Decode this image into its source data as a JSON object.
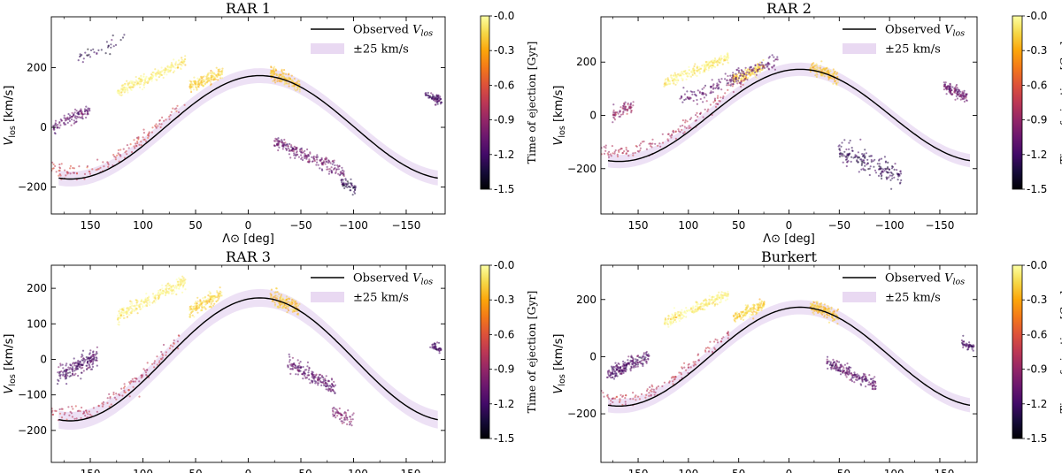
{
  "chart_data": [
    {
      "type": "scatter",
      "title": "RAR 1",
      "xlabel": "Λ⊙ [deg]",
      "ylabel": "V_los [km/s]",
      "xlim": [
        187,
        -187
      ],
      "ylim": [
        -290,
        370
      ],
      "x_ticks": [
        150,
        100,
        50,
        0,
        -50,
        -100,
        -150
      ],
      "x_tick_labels": [
        "150",
        "100",
        "50",
        "0",
        "−50",
        "−100",
        "−150"
      ],
      "y_ticks": [
        -200,
        0,
        200
      ],
      "y_tick_labels": [
        "−200",
        "0",
        "200"
      ],
      "legend": {
        "position": "top-right",
        "entries": [
          "Observed V_los",
          "±25 km/s"
        ]
      },
      "colorbar": {
        "label": "Time of ejection [Gyr]",
        "range": [
          -1.5,
          0.0
        ],
        "ticks": [
          "-0.0",
          "-0.3",
          "-0.6",
          "-0.9",
          "-1.2",
          "-1.5"
        ],
        "colormap": "inferno"
      },
      "observed_curve": {
        "model": "V = 170·cos(Λ) − 33·sin(Λ)",
        "amplitude": 173,
        "phase_deg": 11,
        "band_halfwidth": 25
      },
      "clumps": [
        {
          "center": [
            92,
            170
          ],
          "length": 185,
          "width": 18,
          "time": -0.05,
          "n": 250
        },
        {
          "center": [
            40,
            160
          ],
          "length": 90,
          "width": 20,
          "time": -0.15,
          "n": 160
        },
        {
          "center": [
            -35,
            160
          ],
          "length": 80,
          "width": 22,
          "time": -0.2,
          "n": 150
        },
        {
          "center": [
            130,
            -110
          ],
          "length": 140,
          "width": 24,
          "time": -0.7,
          "n": 150
        },
        {
          "center": [
            168,
            30
          ],
          "length": 100,
          "width": 22,
          "time": -1.1,
          "n": 110
        },
        {
          "center": [
            -58,
            -100
          ],
          "length": 190,
          "width": 22,
          "time": -1.05,
          "n": 220
        },
        {
          "center": [
            -95,
            -195
          ],
          "length": 40,
          "width": 22,
          "time": -1.3,
          "n": 50
        },
        {
          "center": [
            -176,
            100
          ],
          "length": 45,
          "width": 14,
          "time": -1.2,
          "n": 70
        },
        {
          "center": [
            140,
            260
          ],
          "length": 130,
          "width": 22,
          "time": -1.3,
          "n": 35
        }
      ]
    },
    {
      "type": "scatter",
      "title": "RAR 2",
      "xlabel": "Λ⊙ [deg]",
      "ylabel": "V_los [km/s]",
      "xlim": [
        187,
        -187
      ],
      "ylim": [
        -370,
        370
      ],
      "x_ticks": [
        150,
        100,
        50,
        0,
        -50,
        -100,
        -150
      ],
      "x_tick_labels": [
        "150",
        "100",
        "50",
        "0",
        "−50",
        "−100",
        "−150"
      ],
      "y_ticks": [
        -200,
        0,
        200
      ],
      "y_tick_labels": [
        "−200",
        "0",
        "200"
      ],
      "legend": {
        "position": "top-right",
        "entries": [
          "Observed V_los",
          "±25 km/s"
        ]
      },
      "colorbar": {
        "label": "Time of ejection [Gyr]",
        "range": [
          -1.5,
          0.0
        ],
        "ticks": [
          "-0.0",
          "-0.3",
          "-0.6",
          "-0.9",
          "-1.2",
          "-1.5"
        ],
        "colormap": "inferno"
      },
      "observed_curve": {
        "model": "V = 170·cos(Λ) − 33·sin(Λ)",
        "amplitude": 173,
        "phase_deg": 11,
        "band_halfwidth": 25
      },
      "clumps": [
        {
          "center": [
            92,
            170
          ],
          "length": 185,
          "width": 18,
          "time": -0.05,
          "n": 240
        },
        {
          "center": [
            40,
            160
          ],
          "length": 90,
          "width": 20,
          "time": -0.15,
          "n": 150
        },
        {
          "center": [
            -35,
            160
          ],
          "length": 80,
          "width": 22,
          "time": -0.2,
          "n": 140
        },
        {
          "center": [
            120,
            -80
          ],
          "length": 150,
          "width": 28,
          "time": -0.8,
          "n": 150
        },
        {
          "center": [
            60,
            130
          ],
          "length": 280,
          "width": 26,
          "time": -1.1,
          "n": 180
        },
        {
          "center": [
            -80,
            -180
          ],
          "length": 180,
          "width": 40,
          "time": -1.25,
          "n": 180
        },
        {
          "center": [
            -165,
            90
          ],
          "length": 70,
          "width": 22,
          "time": -1.05,
          "n": 120
        },
        {
          "center": [
            165,
            20
          ],
          "length": 60,
          "width": 26,
          "time": -0.9,
          "n": 70
        }
      ]
    },
    {
      "type": "scatter",
      "title": "RAR 3",
      "xlabel": "Λ⊙ [deg]",
      "ylabel": "V_los [km/s]",
      "xlim": [
        187,
        -187
      ],
      "ylim": [
        -290,
        265
      ],
      "x_ticks": [
        150,
        100,
        50,
        0,
        -50,
        -100,
        -150
      ],
      "x_tick_labels": [
        "150",
        "100",
        "50",
        "0",
        "−50",
        "−100",
        "−150"
      ],
      "y_ticks": [
        -200,
        -100,
        0,
        100,
        200
      ],
      "y_tick_labels": [
        "−200",
        "−100",
        "0",
        "100",
        "200"
      ],
      "legend": {
        "position": "top-right",
        "entries": [
          "Observed V_los",
          "±25 km/s"
        ]
      },
      "colorbar": {
        "label": "Time of ejection [Gyr]",
        "range": [
          -1.5,
          0.0
        ],
        "ticks": [
          "-0.0",
          "-0.3",
          "-0.6",
          "-0.9",
          "-1.2",
          "-1.5"
        ],
        "colormap": "inferno"
      },
      "observed_curve": {
        "model": "V = 170·cos(Λ) − 33·sin(Λ)",
        "amplitude": 173,
        "phase_deg": 11,
        "band_halfwidth": 25
      },
      "clumps": [
        {
          "center": [
            92,
            170
          ],
          "length": 185,
          "width": 18,
          "time": -0.05,
          "n": 260
        },
        {
          "center": [
            40,
            160
          ],
          "length": 90,
          "width": 20,
          "time": -0.15,
          "n": 160
        },
        {
          "center": [
            -35,
            160
          ],
          "length": 80,
          "width": 22,
          "time": -0.2,
          "n": 150
        },
        {
          "center": [
            130,
            -115
          ],
          "length": 130,
          "width": 22,
          "time": -0.75,
          "n": 140
        },
        {
          "center": [
            162,
            -20
          ],
          "length": 110,
          "width": 26,
          "time": -1.15,
          "n": 190
        },
        {
          "center": [
            -60,
            -45
          ],
          "length": 130,
          "width": 20,
          "time": -1.1,
          "n": 180
        },
        {
          "center": [
            -90,
            -160
          ],
          "length": 60,
          "width": 20,
          "time": -1.0,
          "n": 60
        },
        {
          "center": [
            -178,
            35
          ],
          "length": 30,
          "width": 12,
          "time": -1.2,
          "n": 40
        }
      ]
    },
    {
      "type": "scatter",
      "title": "Burkert",
      "xlabel": "Λ⊙ [deg]",
      "ylabel": "V_los [km/s]",
      "xlim": [
        187,
        -187
      ],
      "ylim": [
        -370,
        320
      ],
      "x_ticks": [
        150,
        100,
        50,
        0,
        -50,
        -100,
        -150
      ],
      "x_tick_labels": [
        "150",
        "100",
        "50",
        "0",
        "−50",
        "−100",
        "−150"
      ],
      "y_ticks": [
        -200,
        0,
        200
      ],
      "y_tick_labels": [
        "−200",
        "0",
        "200"
      ],
      "legend": {
        "position": "top-right",
        "entries": [
          "Observed V_los",
          "±25 km/s"
        ]
      },
      "colorbar": {
        "label": "Time of ejection [Gyr]",
        "range": [
          -1.5,
          0.0
        ],
        "ticks": [
          "-0.0",
          "-0.3",
          "-0.6",
          "-0.9",
          "-1.2",
          "-1.5"
        ],
        "colormap": "inferno"
      },
      "observed_curve": {
        "model": "V = 170·cos(Λ) − 33·sin(Λ)",
        "amplitude": 173,
        "phase_deg": 11,
        "band_halfwidth": 25
      },
      "clumps": [
        {
          "center": [
            92,
            170
          ],
          "length": 185,
          "width": 18,
          "time": -0.05,
          "n": 250
        },
        {
          "center": [
            40,
            160
          ],
          "length": 90,
          "width": 20,
          "time": -0.15,
          "n": 160
        },
        {
          "center": [
            -35,
            160
          ],
          "length": 80,
          "width": 22,
          "time": -0.2,
          "n": 150
        },
        {
          "center": [
            130,
            -110
          ],
          "length": 140,
          "width": 22,
          "time": -0.75,
          "n": 140
        },
        {
          "center": [
            160,
            -30
          ],
          "length": 120,
          "width": 26,
          "time": -1.15,
          "n": 200
        },
        {
          "center": [
            -62,
            -60
          ],
          "length": 140,
          "width": 20,
          "time": -1.1,
          "n": 190
        },
        {
          "center": [
            -178,
            40
          ],
          "length": 35,
          "width": 12,
          "time": -1.2,
          "n": 45
        }
      ]
    }
  ]
}
